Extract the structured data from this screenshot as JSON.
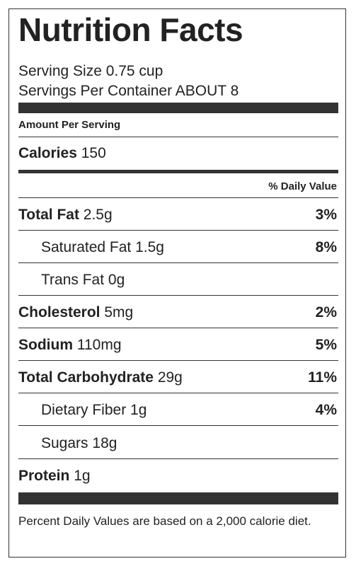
{
  "label": {
    "title": "Nutrition Facts",
    "serving_size": "Serving Size 0.75 cup",
    "servings_per_container": "Servings Per Container ABOUT 8",
    "amount_per_serving": "Amount Per Serving",
    "calories_label": "Calories",
    "calories_value": "150",
    "daily_value_header": "% Daily Value",
    "nutrients": [
      {
        "name": "Total Fat",
        "amount": "2.5g",
        "dv": "3%"
      },
      {
        "name": "Saturated Fat",
        "amount": "1.5g",
        "dv": "8%"
      },
      {
        "name": "Trans Fat",
        "amount": "0g",
        "dv": ""
      },
      {
        "name": "Cholesterol",
        "amount": "5mg",
        "dv": "2%"
      },
      {
        "name": "Sodium",
        "amount": "110mg",
        "dv": "5%"
      },
      {
        "name": "Total Carbohydrate",
        "amount": "29g",
        "dv": "11%"
      },
      {
        "name": "Dietary Fiber",
        "amount": "1g",
        "dv": "4%"
      },
      {
        "name": "Sugars",
        "amount": "18g",
        "dv": ""
      },
      {
        "name": "Protein",
        "amount": "1g",
        "dv": ""
      }
    ],
    "footnote": "Percent Daily Values are based on a 2,000 calorie diet."
  }
}
